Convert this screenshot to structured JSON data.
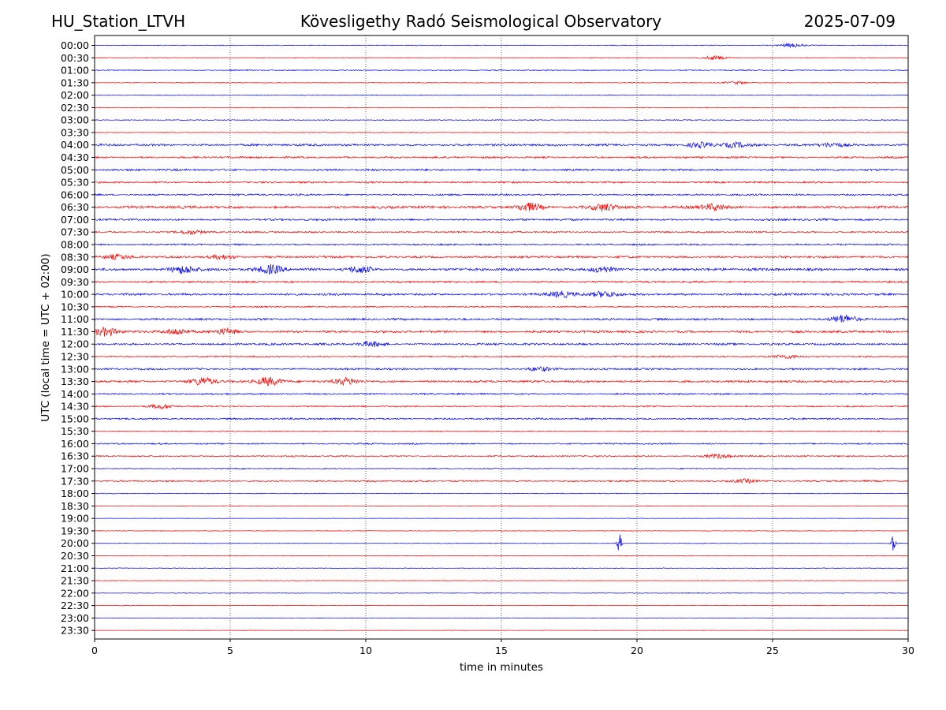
{
  "header": {
    "station": "HU_Station_LTVH",
    "observatory": "Kövesligethy Radó Seismological Observatory",
    "date": "2025-07-09"
  },
  "chart_data": {
    "type": "line",
    "title": "Kövesligethy Radó Seismological Observatory",
    "xlabel": "time in minutes",
    "ylabel": "UTC (local time = UTC + 02:00)",
    "xlim": [
      0,
      30
    ],
    "x_ticks": [
      0,
      5,
      10,
      15,
      20,
      25,
      30
    ],
    "grid": "vertical dotted lines at every 5 minutes",
    "series_colors": [
      "#0000ff",
      "#ff0000"
    ],
    "rows": [
      "00:00",
      "00:30",
      "01:00",
      "01:30",
      "02:00",
      "02:30",
      "03:00",
      "03:30",
      "04:00",
      "04:30",
      "05:00",
      "05:30",
      "06:00",
      "06:30",
      "07:00",
      "07:30",
      "08:00",
      "08:30",
      "09:00",
      "09:30",
      "10:00",
      "10:30",
      "11:00",
      "11:30",
      "12:00",
      "12:30",
      "13:00",
      "13:30",
      "14:00",
      "14:30",
      "15:00",
      "15:30",
      "16:00",
      "16:30",
      "17:00",
      "17:30",
      "18:00",
      "18:30",
      "19:00",
      "19:30",
      "20:00",
      "20:30",
      "21:00",
      "21:30",
      "22:00",
      "22:30",
      "23:00",
      "23:30"
    ],
    "noise_level": [
      0.4,
      0.35,
      0.5,
      0.4,
      0.4,
      0.4,
      0.45,
      0.35,
      1.1,
      0.9,
      1.0,
      0.9,
      0.9,
      1.3,
      1.0,
      0.8,
      0.8,
      1.1,
      1.3,
      0.9,
      1.1,
      0.7,
      1.0,
      1.1,
      1.0,
      0.7,
      0.9,
      1.1,
      0.8,
      0.7,
      0.9,
      0.5,
      0.7,
      0.7,
      0.5,
      0.8,
      0.4,
      0.3,
      0.25,
      0.3,
      0.35,
      0.35,
      0.3,
      0.3,
      0.35,
      0.3,
      0.25,
      0.25
    ],
    "bursts": [
      {
        "row": "00:00",
        "t": 25.7,
        "amp": 2.5
      },
      {
        "row": "00:30",
        "t": 22.9,
        "amp": 2.5
      },
      {
        "row": "01:30",
        "t": 23.7,
        "amp": 1.5
      },
      {
        "row": "04:00",
        "t": 22.3,
        "amp": 3
      },
      {
        "row": "04:00",
        "t": 23.6,
        "amp": 3
      },
      {
        "row": "04:00",
        "t": 27.2,
        "amp": 2.5
      },
      {
        "row": "06:30",
        "t": 16.0,
        "amp": 5
      },
      {
        "row": "06:30",
        "t": 18.8,
        "amp": 4.5
      },
      {
        "row": "06:30",
        "t": 22.8,
        "amp": 4
      },
      {
        "row": "07:30",
        "t": 3.5,
        "amp": 2.5
      },
      {
        "row": "08:30",
        "t": 0.8,
        "amp": 2.5
      },
      {
        "row": "08:30",
        "t": 4.7,
        "amp": 2.5
      },
      {
        "row": "09:00",
        "t": 3.3,
        "amp": 5
      },
      {
        "row": "09:00",
        "t": 6.5,
        "amp": 5
      },
      {
        "row": "09:00",
        "t": 9.8,
        "amp": 4
      },
      {
        "row": "09:00",
        "t": 18.7,
        "amp": 3.5
      },
      {
        "row": "10:00",
        "t": 17.2,
        "amp": 3.5
      },
      {
        "row": "10:00",
        "t": 18.8,
        "amp": 3.5
      },
      {
        "row": "11:00",
        "t": 27.6,
        "amp": 5
      },
      {
        "row": "11:30",
        "t": 0.4,
        "amp": 5
      },
      {
        "row": "11:30",
        "t": 3.0,
        "amp": 3.5
      },
      {
        "row": "11:30",
        "t": 4.8,
        "amp": 3.5
      },
      {
        "row": "12:00",
        "t": 10.2,
        "amp": 3
      },
      {
        "row": "12:30",
        "t": 25.5,
        "amp": 2.5
      },
      {
        "row": "13:00",
        "t": 16.4,
        "amp": 2.5
      },
      {
        "row": "13:30",
        "t": 4.0,
        "amp": 5
      },
      {
        "row": "13:30",
        "t": 6.4,
        "amp": 5
      },
      {
        "row": "13:30",
        "t": 9.3,
        "amp": 4
      },
      {
        "row": "14:30",
        "t": 2.5,
        "amp": 2.5
      },
      {
        "row": "16:30",
        "t": 23.0,
        "amp": 2.5
      },
      {
        "row": "17:30",
        "t": 24.0,
        "amp": 2.5
      },
      {
        "row": "20:00",
        "t": 19.35,
        "amp": 12
      },
      {
        "row": "20:00",
        "t": 29.45,
        "amp": 10
      }
    ]
  }
}
